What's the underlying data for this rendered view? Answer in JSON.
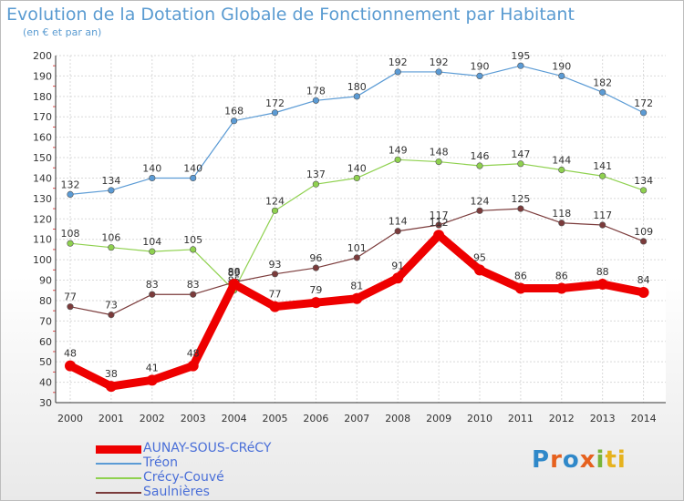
{
  "chart_data": {
    "type": "line",
    "title": "Evolution de la Dotation Globale de Fonctionnement par Habitant",
    "subtitle": "(en € et par an)",
    "xlabel": "",
    "ylabel": "",
    "ylim": [
      30,
      200
    ],
    "y_ticks": [
      30,
      40,
      50,
      60,
      70,
      80,
      90,
      100,
      110,
      120,
      130,
      140,
      150,
      160,
      170,
      180,
      190,
      200
    ],
    "categories": [
      "2000",
      "2001",
      "2002",
      "2003",
      "2004",
      "2005",
      "2006",
      "2007",
      "2008",
      "2009",
      "2010",
      "2011",
      "2012",
      "2013",
      "2014"
    ],
    "grid": true,
    "legend_position": "bottom-left",
    "series": [
      {
        "name": "Tréon",
        "color": "#5b9bd5",
        "emphasis": false,
        "values": [
          132,
          134,
          140,
          140,
          168,
          172,
          178,
          180,
          192,
          192,
          190,
          195,
          190,
          182,
          172
        ]
      },
      {
        "name": "Crécy-Couvé",
        "color": "#8fd14f",
        "emphasis": false,
        "values": [
          108,
          106,
          104,
          105,
          85,
          124,
          137,
          140,
          149,
          148,
          146,
          147,
          144,
          141,
          134
        ]
      },
      {
        "name": "Saulnières",
        "color": "#7b3b3b",
        "emphasis": false,
        "values": [
          77,
          73,
          83,
          83,
          89,
          93,
          96,
          101,
          114,
          117,
          124,
          125,
          118,
          117,
          109
        ]
      },
      {
        "name": "AUNAY-SOUS-CRéCY",
        "color": "#ee0000",
        "emphasis": true,
        "values": [
          48,
          38,
          41,
          48,
          88,
          77,
          79,
          81,
          91,
          112,
          95,
          86,
          86,
          88,
          84
        ]
      }
    ],
    "legend_order": [
      "AUNAY-SOUS-CRéCY",
      "Tréon",
      "Crécy-Couvé",
      "Saulnières"
    ]
  },
  "logo": {
    "letters": [
      "P",
      "r",
      "o",
      "x",
      "i",
      "ti"
    ]
  }
}
